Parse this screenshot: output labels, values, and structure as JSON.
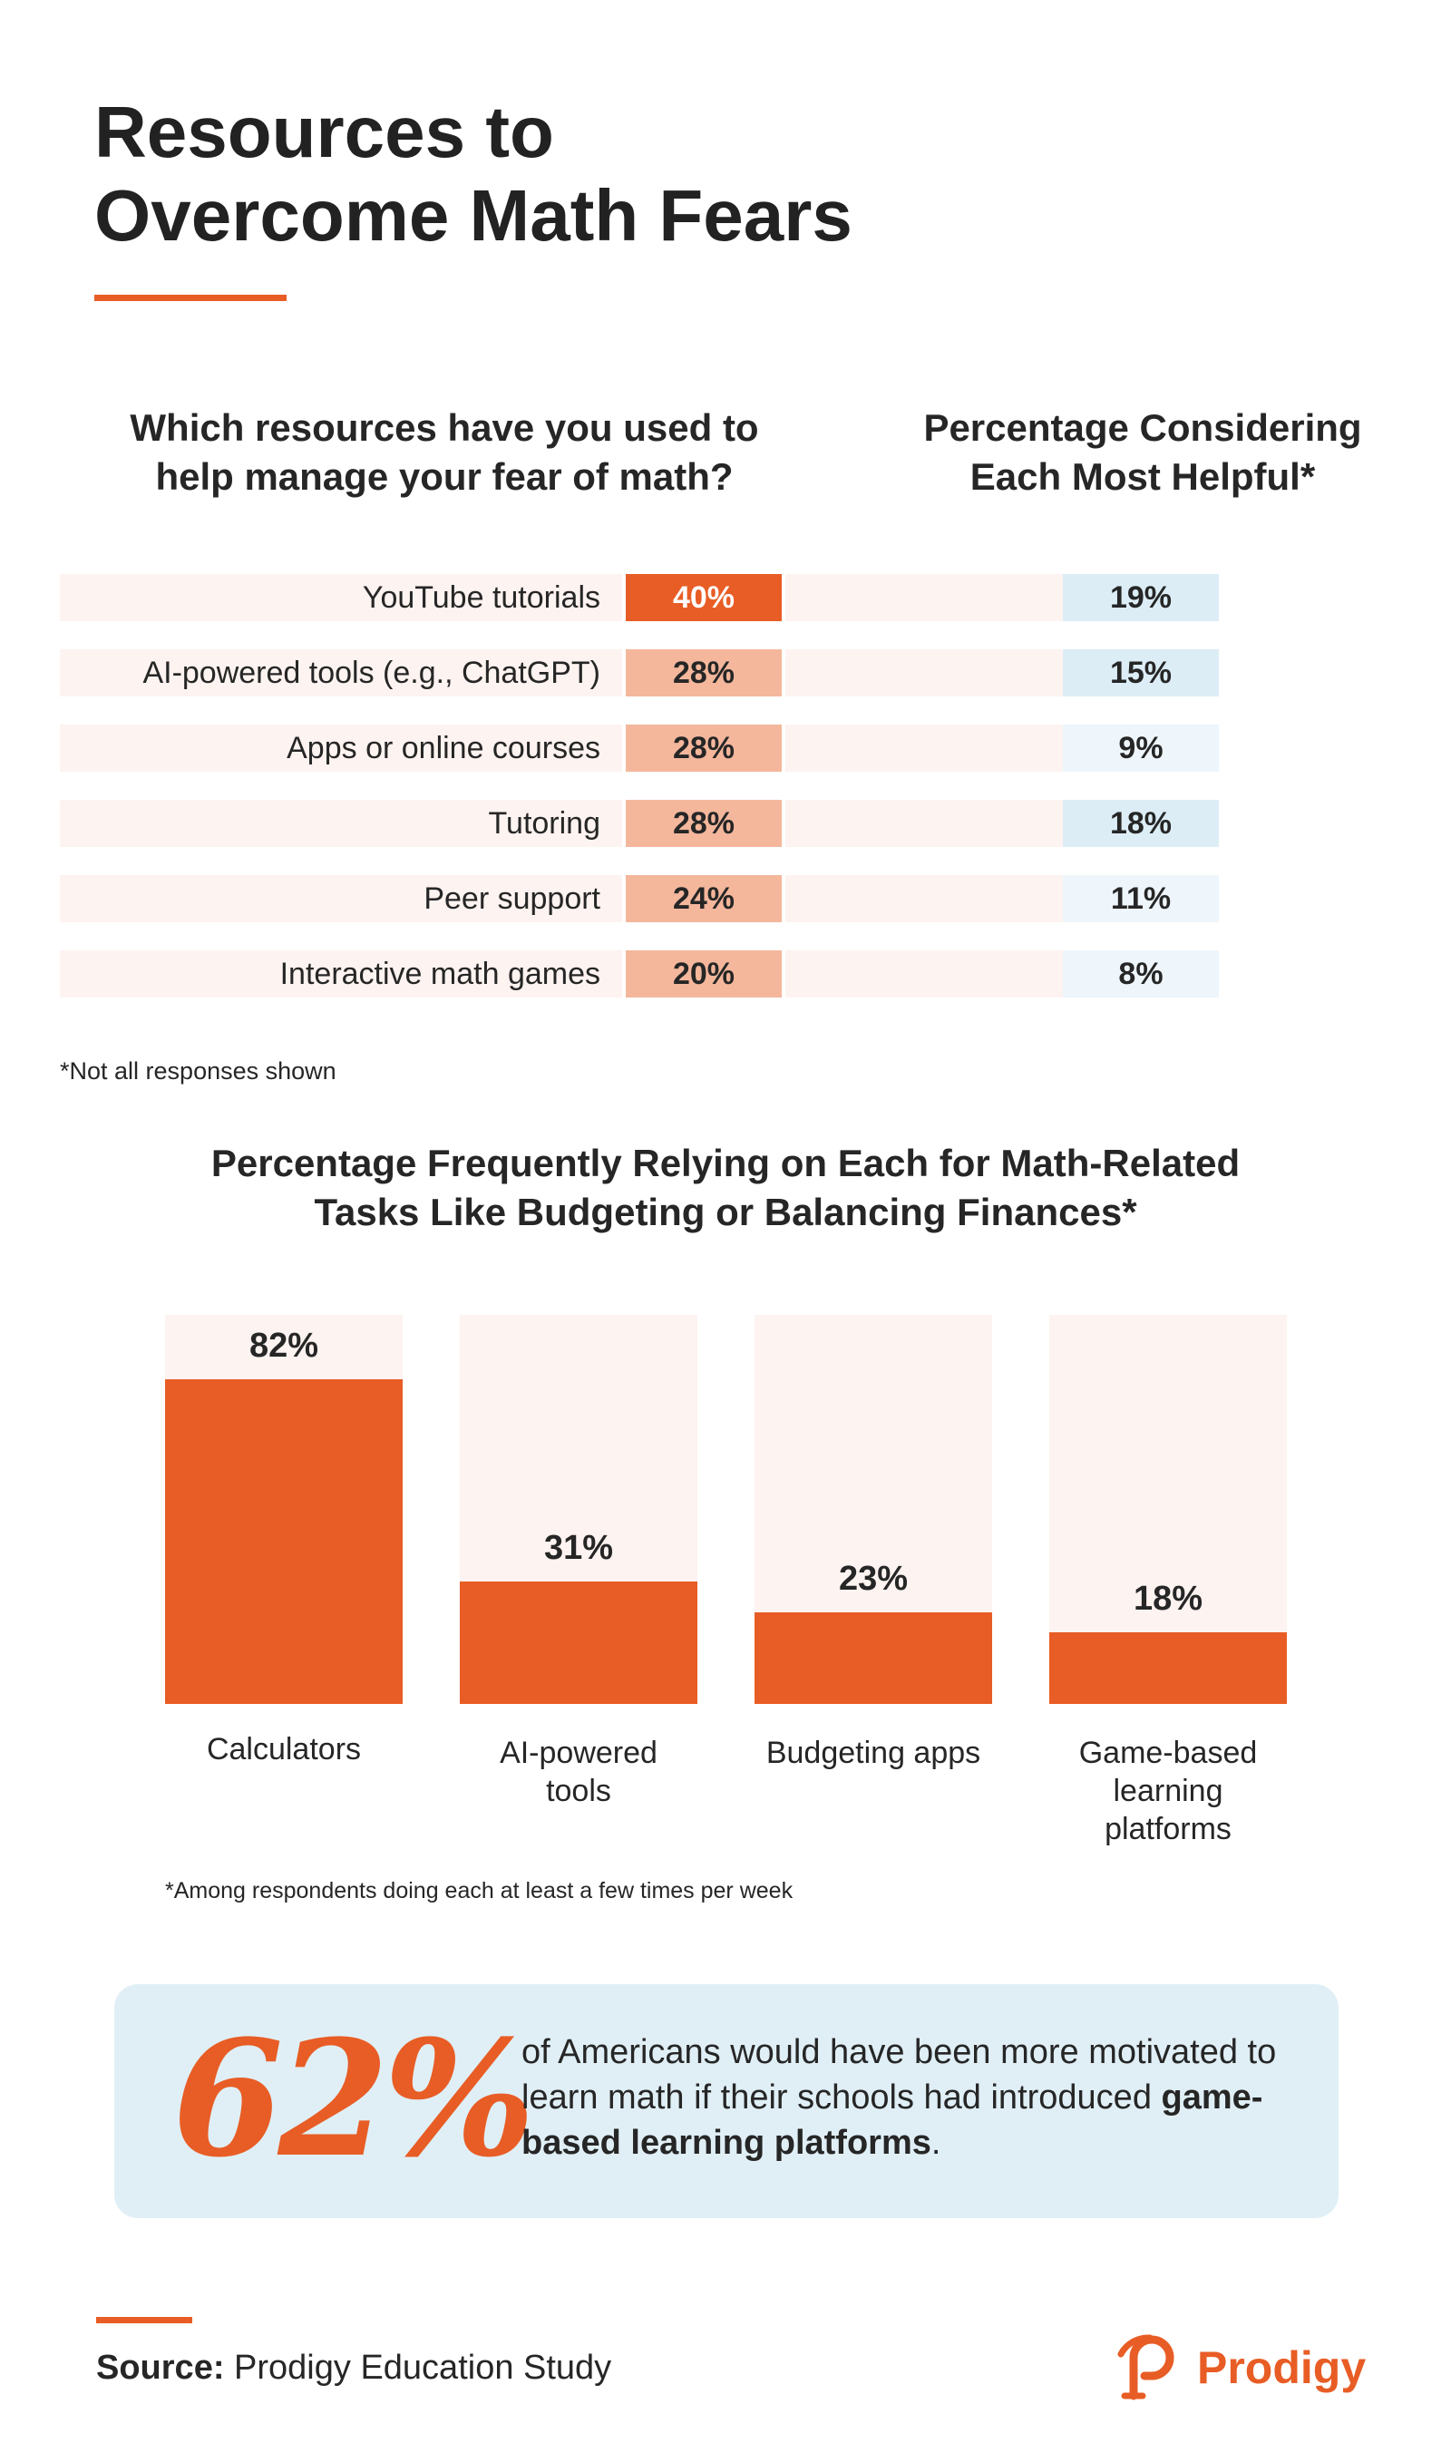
{
  "title": {
    "line1": "Resources to",
    "line2": "Overcome Math Fears"
  },
  "colors": {
    "accent": "#e85d25",
    "light_orange": "#f4b79c",
    "row_bg": "#fdf3f0",
    "blue_strong": "#dcedf6",
    "blue_light": "#eef6fb",
    "callout_bg": "#e0eff6"
  },
  "section1": {
    "left_heading": {
      "line1": "Which resources have you used to",
      "line2": "help manage your fear of math?"
    },
    "right_heading": {
      "line1": "Percentage Considering",
      "line2": "Each Most Helpful*"
    },
    "footnote": "*Not all responses shown"
  },
  "section2": {
    "heading": {
      "line1": "Percentage Frequently Relying on Each for Math-Related",
      "line2": "Tasks Like Budgeting or Balancing Finances*"
    },
    "footnote": "*Among respondents doing each at least a few times per week"
  },
  "chart_data": [
    {
      "type": "table",
      "title": "Which resources have you used to help manage your fear of math?",
      "categories": [
        "YouTube tutorials",
        "AI-powered tools (e.g., ChatGPT)",
        "Apps or online courses",
        "Tutoring",
        "Peer support",
        "Interactive math games"
      ],
      "series": [
        {
          "name": "Used to help manage fear of math",
          "values": [
            40,
            28,
            28,
            28,
            24,
            20
          ],
          "labels": [
            "40%",
            "28%",
            "28%",
            "28%",
            "24%",
            "20%"
          ]
        },
        {
          "name": "Percentage Considering Each Most Helpful*",
          "values": [
            19,
            15,
            9,
            18,
            11,
            8
          ],
          "labels": [
            "19%",
            "15%",
            "9%",
            "18%",
            "11%",
            "8%"
          ]
        }
      ]
    },
    {
      "type": "bar",
      "title": "Percentage Frequently Relying on Each for Math-Related Tasks Like Budgeting or Balancing Finances*",
      "categories": [
        "Calculators",
        "AI-powered tools",
        "Budgeting apps",
        "Game-based learning platforms"
      ],
      "category_lines": [
        [
          "Calculators"
        ],
        [
          "AI-powered",
          "tools"
        ],
        [
          "Budgeting apps"
        ],
        [
          "Game-based",
          "learning",
          "platforms"
        ]
      ],
      "values": [
        82,
        31,
        23,
        18
      ],
      "labels": [
        "82%",
        "31%",
        "23%",
        "18%"
      ],
      "ylim": [
        0,
        100
      ]
    }
  ],
  "callout": {
    "stat": "62%",
    "text_before": "of Americans would have been more motivated to learn math if their schools had introduced ",
    "text_bold": "game-based learning platforms",
    "text_after": "."
  },
  "source": {
    "label": "Source:",
    "text": " Prodigy Education Study"
  },
  "logo": {
    "text": "Prodigy",
    "icon": "prodigy-p-icon"
  }
}
